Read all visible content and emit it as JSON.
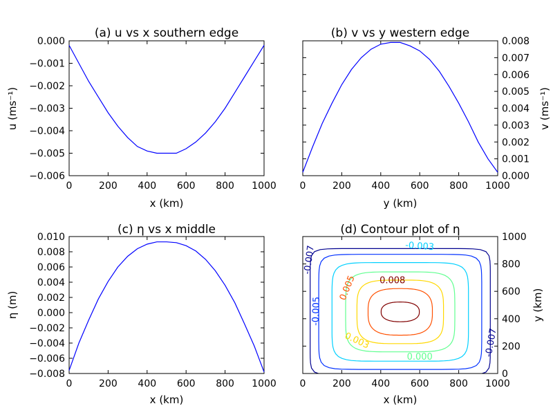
{
  "chart_data": [
    {
      "type": "line",
      "title": "(a) u vs x southern edge",
      "xlabel": "x (km)",
      "ylabel": "u (ms⁻¹)",
      "xlim": [
        0,
        1000
      ],
      "ylim": [
        -0.006,
        0.0
      ],
      "xticks": [
        "0",
        "200",
        "400",
        "600",
        "800",
        "1000"
      ],
      "yticks": [
        "0.000",
        "−0.001",
        "−0.002",
        "−0.003",
        "−0.004",
        "−0.005",
        "−0.006"
      ],
      "yaxis_side": "left",
      "series": [
        {
          "color": "#0000ff",
          "x": [
            0,
            50,
            100,
            150,
            200,
            250,
            300,
            350,
            400,
            450,
            500,
            550,
            600,
            650,
            700,
            750,
            800,
            850,
            900,
            950,
            1000
          ],
          "values": [
            -0.0002,
            -0.001,
            -0.0018,
            -0.0025,
            -0.0032,
            -0.0038,
            -0.0043,
            -0.0047,
            -0.0049,
            -0.005,
            -0.005,
            -0.005,
            -0.0048,
            -0.0045,
            -0.0041,
            -0.0036,
            -0.003,
            -0.0023,
            -0.0016,
            -0.0009,
            -0.0002
          ]
        }
      ]
    },
    {
      "type": "line",
      "title": "(b) v vs y western edge",
      "xlabel": "y (km)",
      "ylabel": "v (ms⁻¹)",
      "xlim": [
        0,
        1000
      ],
      "ylim": [
        0.0,
        0.008
      ],
      "xticks": [
        "0",
        "200",
        "400",
        "600",
        "800",
        "1000"
      ],
      "yticks": [
        "0.008",
        "0.007",
        "0.006",
        "0.005",
        "0.004",
        "0.003",
        "0.002",
        "0.001",
        "0.000"
      ],
      "yaxis_side": "right",
      "series": [
        {
          "color": "#0000ff",
          "x": [
            0,
            50,
            100,
            150,
            200,
            250,
            300,
            350,
            400,
            450,
            500,
            550,
            600,
            650,
            700,
            750,
            800,
            850,
            900,
            950,
            1000
          ],
          "values": [
            0.0002,
            0.0017,
            0.0031,
            0.0043,
            0.0054,
            0.0063,
            0.007,
            0.0075,
            0.0078,
            0.0079,
            0.0079,
            0.0077,
            0.0074,
            0.0069,
            0.0062,
            0.0053,
            0.0043,
            0.0032,
            0.002,
            0.001,
            0.0002
          ]
        }
      ]
    },
    {
      "type": "line",
      "title": "(c) η vs x middle",
      "xlabel": "x (km)",
      "ylabel": "η (m)",
      "xlim": [
        0,
        1000
      ],
      "ylim": [
        -0.008,
        0.01
      ],
      "xticks": [
        "0",
        "200",
        "400",
        "600",
        "800",
        "1000"
      ],
      "yticks": [
        "0.010",
        "0.008",
        "0.006",
        "0.004",
        "0.002",
        "0.000",
        "−0.002",
        "−0.004",
        "−0.006",
        "−0.008"
      ],
      "yaxis_side": "left",
      "series": [
        {
          "color": "#0000ff",
          "x": [
            0,
            50,
            100,
            150,
            200,
            250,
            300,
            350,
            400,
            450,
            500,
            550,
            600,
            650,
            700,
            750,
            800,
            850,
            900,
            950,
            1000
          ],
          "values": [
            -0.0076,
            -0.004,
            -0.001,
            0.0018,
            0.0041,
            0.006,
            0.0074,
            0.0084,
            0.009,
            0.0093,
            0.0093,
            0.0092,
            0.0088,
            0.0081,
            0.007,
            0.0055,
            0.0036,
            0.0013,
            -0.0015,
            -0.0044,
            -0.0078
          ]
        }
      ]
    },
    {
      "type": "contour",
      "title": "(d) Contour plot of η",
      "xlabel": "x (km)",
      "ylabel": "y (km)",
      "xlim": [
        0,
        1000
      ],
      "ylim": [
        0,
        1000
      ],
      "xticks": [
        "0",
        "200",
        "400",
        "600",
        "800",
        "1000"
      ],
      "yticks": [
        "1000",
        "800",
        "600",
        "400",
        "200",
        "0"
      ],
      "yaxis_side": "right",
      "levels": [
        {
          "value": -0.007,
          "color": "#00008f",
          "rx": 462,
          "ry": 462,
          "n": 14
        },
        {
          "value": -0.005,
          "color": "#0030ff",
          "rx": 418,
          "ry": 420,
          "n": 10
        },
        {
          "value": -0.003,
          "color": "#00d0ff",
          "rx": 350,
          "ry": 360,
          "n": 7
        },
        {
          "value": 0.0,
          "color": "#60ff90",
          "rx": 280,
          "ry": 292,
          "n": 5
        },
        {
          "value": 0.003,
          "color": "#ffd800",
          "rx": 222,
          "ry": 232,
          "n": 4
        },
        {
          "value": 0.005,
          "color": "#ff5000",
          "rx": 165,
          "ry": 170,
          "n": 3
        },
        {
          "value": 0.008,
          "color": "#800000",
          "rx": 98,
          "ry": 72,
          "n": 2.4
        }
      ],
      "labels": [
        {
          "text": "-0.003",
          "color": "#00d0ff",
          "x": 600,
          "y": 930,
          "angle": 4
        },
        {
          "text": "-0.007",
          "color": "#00008f",
          "x": 32,
          "y": 830,
          "angle": -82
        },
        {
          "text": "-0.005",
          "color": "#0030ff",
          "x": 68,
          "y": 455,
          "angle": -88
        },
        {
          "text": "-0.007",
          "color": "#00008f",
          "x": 965,
          "y": 225,
          "angle": -80
        },
        {
          "text": "0.005",
          "color": "#ff5000",
          "x": 228,
          "y": 625,
          "angle": -68
        },
        {
          "text": "0.008",
          "color": "#800000",
          "x": 460,
          "y": 680,
          "angle": 0
        },
        {
          "text": "0.003",
          "color": "#ffd800",
          "x": 278,
          "y": 240,
          "angle": 25
        },
        {
          "text": "0.000",
          "color": "#60ff90",
          "x": 600,
          "y": 120,
          "angle": 0
        }
      ]
    }
  ]
}
